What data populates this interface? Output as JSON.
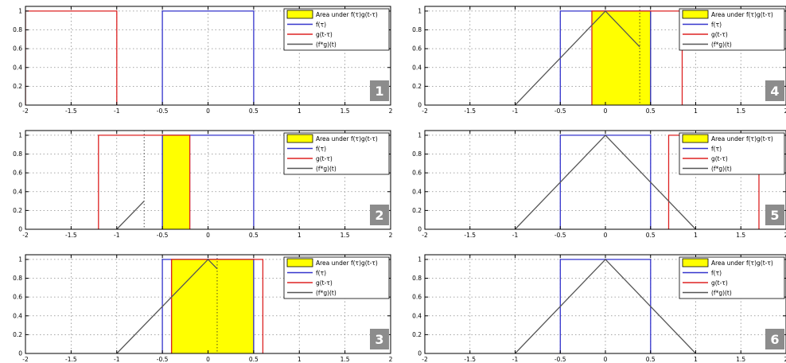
{
  "figure": {
    "panels_layout": "3 rows x 2 columns, panels 1-3 left column, 4-6 right column"
  },
  "legend_labels": [
    "Area under f(τ)g(t-τ)",
    "f(τ)",
    "g(t-τ)",
    "(f*g)(t)"
  ],
  "colors": {
    "area": "#ffff00",
    "f": "#3333cc",
    "g": "#dd2222",
    "conv": "#555555",
    "badge": "#8c8c8c",
    "grid": "#8a8a8a"
  },
  "chart_data": [
    {
      "type": "line",
      "panel_label": "1",
      "xlim": [
        -2,
        2
      ],
      "ylim": [
        0,
        1.05
      ],
      "xticks": [
        "-2",
        "-1.5",
        "-1",
        "-0.5",
        "0",
        "0.5",
        "1",
        "1.5",
        "2"
      ],
      "yticks": [
        "0",
        "0.2",
        "0.4",
        "0.6",
        "0.8",
        "1"
      ],
      "grid": true,
      "legend_position": "top-right",
      "series": [
        {
          "key": "f",
          "x": [
            -0.5,
            -0.5,
            0.5,
            0.5
          ],
          "y": [
            0,
            1,
            1,
            0
          ]
        },
        {
          "key": "g",
          "x": [
            -2,
            -2,
            -1,
            -1
          ],
          "y": [
            0,
            1,
            1,
            0
          ]
        }
      ],
      "shaded_area": null,
      "marker_x": null
    },
    {
      "type": "line",
      "panel_label": "2",
      "xlim": [
        -2,
        2
      ],
      "ylim": [
        0,
        1.05
      ],
      "xticks": [
        "-2",
        "-1.5",
        "-1",
        "-0.5",
        "0",
        "0.5",
        "1",
        "1.5",
        "2"
      ],
      "yticks": [
        "0",
        "0.2",
        "0.4",
        "0.6",
        "0.8",
        "1"
      ],
      "grid": true,
      "legend_position": "top-right",
      "series": [
        {
          "key": "f",
          "x": [
            -0.5,
            -0.5,
            0.5,
            0.5
          ],
          "y": [
            0,
            1,
            1,
            0
          ]
        },
        {
          "key": "g",
          "x": [
            -1.2,
            -1.2,
            -0.2,
            -0.2
          ],
          "y": [
            0,
            1,
            1,
            0
          ]
        },
        {
          "key": "conv",
          "x": [
            -1,
            -0.7
          ],
          "y": [
            0,
            0.3
          ]
        }
      ],
      "shaded_area": [
        -0.5,
        -0.2
      ],
      "marker_x": -0.7
    },
    {
      "type": "line",
      "panel_label": "3",
      "xlim": [
        -2,
        2
      ],
      "ylim": [
        0,
        1.05
      ],
      "xticks": [
        "-2",
        "-1.5",
        "-1",
        "-0.5",
        "0",
        "0.5",
        "1",
        "1.5",
        "2"
      ],
      "yticks": [
        "0",
        "0.2",
        "0.4",
        "0.6",
        "0.8",
        "1"
      ],
      "grid": true,
      "legend_position": "top-right",
      "series": [
        {
          "key": "f",
          "x": [
            -0.5,
            -0.5,
            0.5,
            0.5
          ],
          "y": [
            0,
            1,
            1,
            0
          ]
        },
        {
          "key": "g",
          "x": [
            -0.4,
            -0.4,
            0.6,
            0.6
          ],
          "y": [
            0,
            1,
            1,
            0
          ]
        },
        {
          "key": "conv",
          "x": [
            -1,
            0,
            0.1
          ],
          "y": [
            0,
            1,
            0.9
          ]
        }
      ],
      "shaded_area": [
        -0.4,
        0.5
      ],
      "marker_x": 0.1
    },
    {
      "type": "line",
      "panel_label": "4",
      "xlim": [
        -2,
        2
      ],
      "ylim": [
        0,
        1.05
      ],
      "xticks": [
        "-2",
        "-1.5",
        "-1",
        "-0.5",
        "0",
        "0.5",
        "1",
        "1.5",
        "2"
      ],
      "yticks": [
        "0",
        "0.2",
        "0.4",
        "0.6",
        "0.8",
        "1"
      ],
      "grid": true,
      "legend_position": "top-right",
      "series": [
        {
          "key": "f",
          "x": [
            -0.5,
            -0.5,
            0.5,
            0.5
          ],
          "y": [
            0,
            1,
            1,
            0
          ]
        },
        {
          "key": "g",
          "x": [
            -0.15,
            -0.15,
            0.85,
            0.85
          ],
          "y": [
            0,
            1,
            1,
            0
          ]
        },
        {
          "key": "conv",
          "x": [
            -1,
            0,
            0.38
          ],
          "y": [
            0,
            1,
            0.62
          ]
        }
      ],
      "shaded_area": [
        -0.15,
        0.5
      ],
      "marker_x": 0.38
    },
    {
      "type": "line",
      "panel_label": "5",
      "xlim": [
        -2,
        2
      ],
      "ylim": [
        0,
        1.05
      ],
      "xticks": [
        "-2",
        "-1.5",
        "-1",
        "-0.5",
        "0",
        "0.5",
        "1",
        "1.5",
        "2"
      ],
      "yticks": [
        "0",
        "0.2",
        "0.4",
        "0.6",
        "0.8",
        "1"
      ],
      "grid": true,
      "legend_position": "top-right",
      "series": [
        {
          "key": "f",
          "x": [
            -0.5,
            -0.5,
            0.5,
            0.5
          ],
          "y": [
            0,
            1,
            1,
            0
          ]
        },
        {
          "key": "g",
          "x": [
            0.7,
            0.7,
            1.7,
            1.7
          ],
          "y": [
            0,
            1,
            1,
            0
          ]
        },
        {
          "key": "conv",
          "x": [
            -1,
            0,
            1
          ],
          "y": [
            0,
            1,
            0
          ]
        }
      ],
      "shaded_area": null,
      "marker_x": null
    },
    {
      "type": "line",
      "panel_label": "6",
      "xlim": [
        -2,
        2
      ],
      "ylim": [
        0,
        1.05
      ],
      "xticks": [
        "-2",
        "-1.5",
        "-1",
        "-0.5",
        "0",
        "0.5",
        "1",
        "1.5",
        "2"
      ],
      "yticks": [
        "0",
        "0.2",
        "0.4",
        "0.6",
        "0.8",
        "1"
      ],
      "grid": true,
      "legend_position": "top-right",
      "series": [
        {
          "key": "f",
          "x": [
            -0.5,
            -0.5,
            0.5,
            0.5
          ],
          "y": [
            0,
            1,
            1,
            0
          ]
        },
        {
          "key": "conv",
          "x": [
            -1,
            0,
            1
          ],
          "y": [
            0,
            1,
            0
          ]
        }
      ],
      "shaded_area": null,
      "marker_x": null
    }
  ]
}
